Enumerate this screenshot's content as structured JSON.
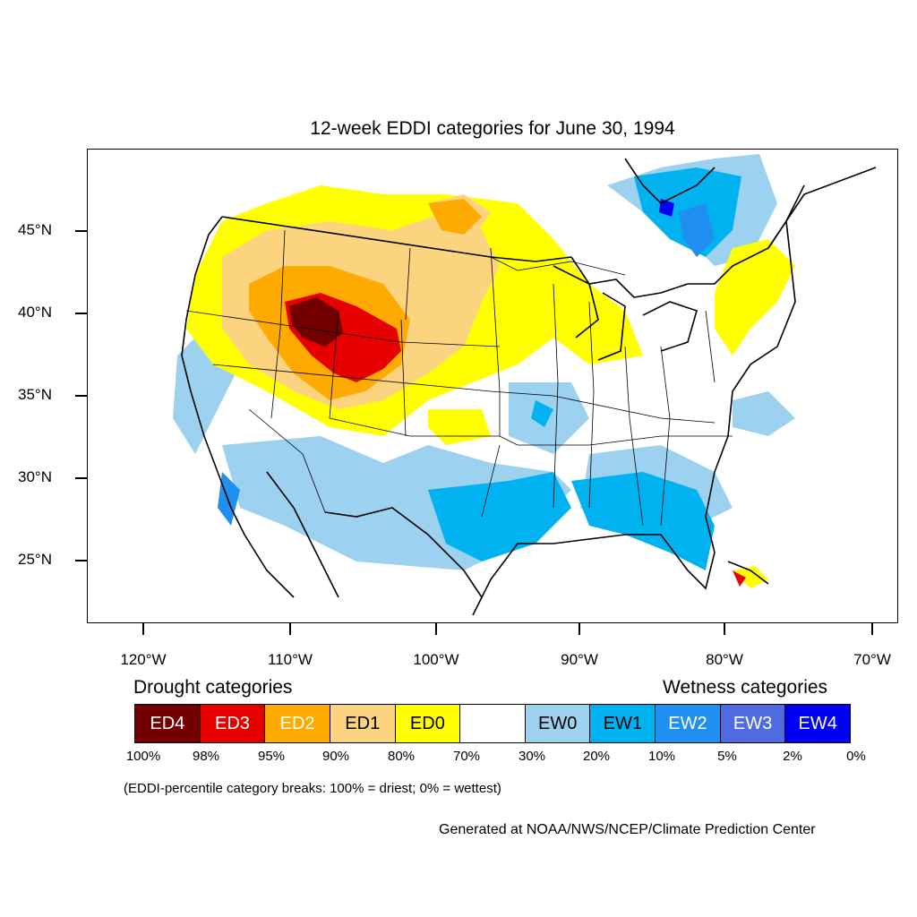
{
  "title": "12-week EDDI categories for June 30, 1994",
  "axes": {
    "lat_labels": [
      "45°N",
      "40°N",
      "35°N",
      "30°N",
      "25°N"
    ],
    "lon_labels": [
      "120°W",
      "110°W",
      "100°W",
      "90°W",
      "80°W",
      "70°W"
    ]
  },
  "legend": {
    "drought_title": "Drought categories",
    "wet_title": "Wetness categories",
    "categories": [
      {
        "label": "ED4",
        "color": "#730000",
        "text_color": "#ffffff"
      },
      {
        "label": "ED3",
        "color": "#e60000",
        "text_color": "#ffffff"
      },
      {
        "label": "ED2",
        "color": "#ffaa00",
        "text_color": "#ffffff"
      },
      {
        "label": "ED1",
        "color": "#fcd37f",
        "text_color": "#000000"
      },
      {
        "label": "ED0",
        "color": "#ffff00",
        "text_color": "#000000"
      },
      {
        "label": "",
        "color": "#ffffff",
        "text_color": "#000000"
      },
      {
        "label": "EW0",
        "color": "#9cd1ef",
        "text_color": "#000000"
      },
      {
        "label": "EW1",
        "color": "#00b3f0",
        "text_color": "#000000"
      },
      {
        "label": "EW2",
        "color": "#1f8ff0",
        "text_color": "#ffffff"
      },
      {
        "label": "EW3",
        "color": "#4f6be0",
        "text_color": "#ffffff"
      },
      {
        "label": "EW4",
        "color": "#0000f5",
        "text_color": "#ffffff"
      }
    ],
    "percentiles": [
      "100%",
      "98%",
      "95%",
      "90%",
      "80%",
      "70%",
      "30%",
      "20%",
      "10%",
      "5%",
      "2%",
      "0%"
    ],
    "note": "(EDDI-percentile category breaks: 100% = driest; 0% = wettest)"
  },
  "credit": "Generated at NOAA/NWS/NCEP/Climate Prediction Center"
}
